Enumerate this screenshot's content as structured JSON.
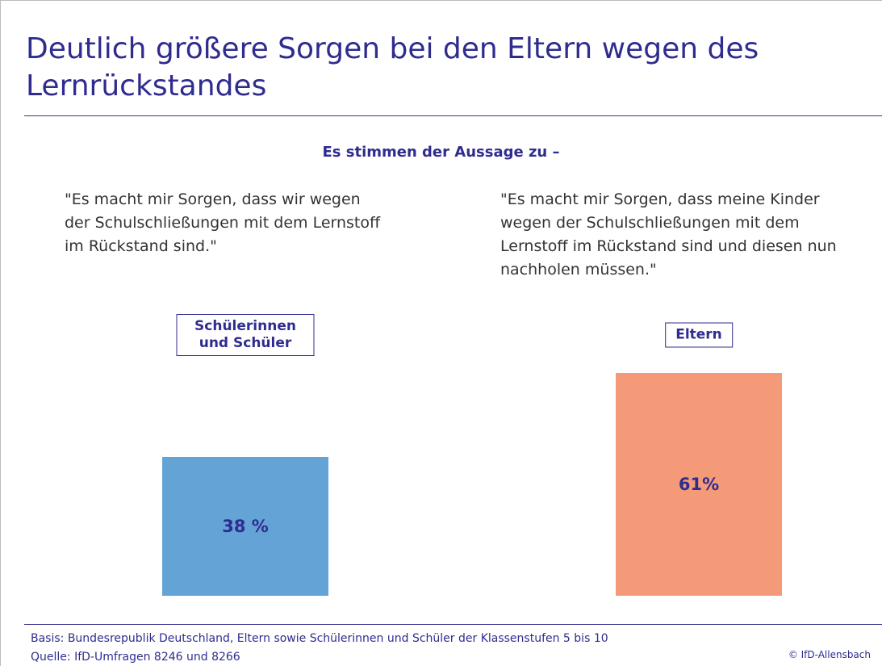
{
  "chart_data": {
    "type": "bar",
    "title": "Deutlich größere Sorgen bei den Eltern wegen des Lernrückstandes",
    "subtitle": "Es stimmen der Aussage zu –",
    "annotations": [
      "\"Es macht mir Sorgen, dass wir wegen der Schulschließungen mit dem Lernstoff im Rückstand sind.\"",
      "\"Es macht mir Sorgen, dass meine Kinder wegen der Schulschließungen mit dem Lernstoff im Rückstand sind und diesen nun nachholen müssen.\""
    ],
    "categories": [
      "Schülerinnen und Schüler",
      "Eltern"
    ],
    "values": [
      38,
      61
    ],
    "value_labels": [
      "38 %",
      "61%"
    ],
    "colors": [
      "#64a3d6",
      "#f59a78"
    ],
    "ylim": [
      0,
      100
    ],
    "notes": [
      "Basis: Bundesrepublik Deutschland, Eltern sowie Schülerinnen und Schüler der Klassenstufen 5 bis 10",
      "Quelle: IfD-Umfragen 8246 und 8266"
    ],
    "copyright": "© IfD-Allensbach"
  }
}
